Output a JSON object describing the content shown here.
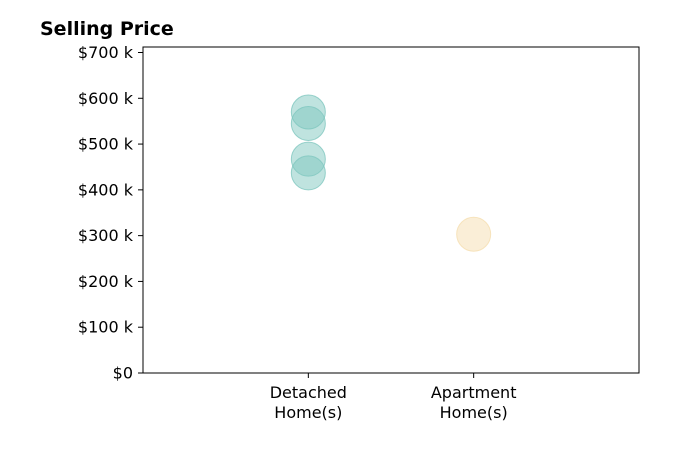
{
  "chart_data": {
    "type": "scatter",
    "title": "Selling Price",
    "xlabel": "",
    "ylabel": "",
    "categories": [
      [
        "Detached",
        "Home(s)"
      ],
      [
        "Apartment",
        "Home(s)"
      ]
    ],
    "xlim": [
      -1,
      2
    ],
    "ylim": [
      0,
      712000
    ],
    "yticks": [
      0,
      100000,
      200000,
      300000,
      400000,
      500000,
      600000,
      700000
    ],
    "ytick_labels": [
      "$0",
      "$100 k",
      "$200 k",
      "$300 k",
      "$400 k",
      "$500 k",
      "$600 k",
      "$700 k"
    ],
    "grid": false,
    "legend": "none",
    "series": [
      {
        "category_index": 0,
        "color": "#7fc7bf",
        "values": [
          570000,
          545000,
          467000,
          437000
        ]
      },
      {
        "category_index": 1,
        "color": "#f5deb0",
        "values": [
          303000
        ]
      }
    ]
  }
}
